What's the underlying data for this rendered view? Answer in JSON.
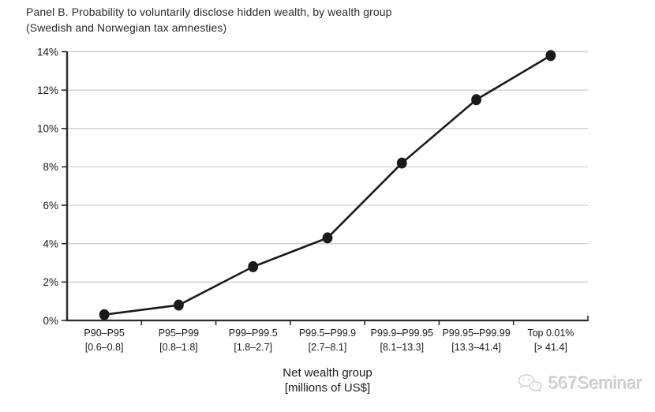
{
  "title": {
    "line1": "Panel B. Probability to voluntarily disclose hidden wealth, by wealth group",
    "line2": "(Swedish and Norwegian tax amnesties)"
  },
  "chart_data": {
    "type": "line",
    "title": "Panel B. Probability to voluntarily disclose hidden wealth, by wealth group (Swedish and Norwegian tax amnesties)",
    "categories": [
      "P90–P95",
      "P95–P99",
      "P99–P99.5",
      "P99.5–P99.9",
      "P99.9–P99.95",
      "P99.95–P99.99",
      "Top 0.01%"
    ],
    "category_ranges": [
      "[0.6–0.8]",
      "[0.8–1.8]",
      "[1.8–2.7]",
      "[2.7–8.1]",
      "[8.1–13.3]",
      "[13.3–41.4]",
      "[> 41.4]"
    ],
    "values": [
      0.3,
      0.8,
      2.8,
      4.3,
      8.2,
      11.5,
      13.8
    ],
    "unit": "%",
    "ylim": [
      0,
      14
    ],
    "ytick_step": 2,
    "ytick_labels": [
      "0%",
      "2%",
      "4%",
      "6%",
      "8%",
      "10%",
      "12%",
      "14%"
    ],
    "xlabel_line1": "Net wealth group",
    "xlabel_line2": "[millions of US$]",
    "grid": "horizontal",
    "legend": "none",
    "line_color": "#1a1a1a",
    "marker": "filled-circle",
    "gridline_color": "#cccccc",
    "axis_color": "#2b2b2b"
  },
  "watermark": {
    "text": "567Seminar",
    "icon": "wechat-bubbles-icon"
  }
}
